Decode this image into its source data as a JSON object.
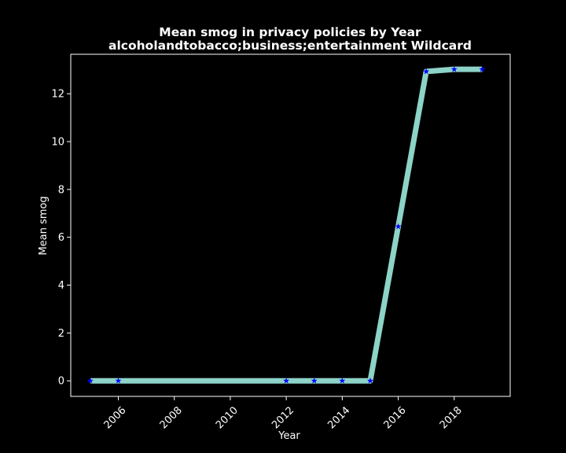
{
  "chart_data": {
    "type": "line",
    "title": "Mean smog in privacy policies by Year",
    "subtitle": "alcoholandtobacco;business;entertainment Wildcard",
    "xlabel": "Year",
    "ylabel": "Mean smog",
    "x": [
      2005,
      2006,
      2012,
      2013,
      2014,
      2015,
      2016,
      2017,
      2018,
      2019
    ],
    "series": [
      {
        "values": [
          0,
          0,
          0,
          0,
          0,
          0,
          6.45,
          12.93,
          13.02,
          13.02
        ]
      }
    ],
    "xlim": [
      2004.3,
      2020.0
    ],
    "ylim": [
      -0.65,
      13.65
    ],
    "xticks": [
      2006,
      2008,
      2010,
      2012,
      2014,
      2016,
      2018
    ],
    "xtick_labels": [
      "2006",
      "2008",
      "2010",
      "2012",
      "2014",
      "2016",
      "2018"
    ],
    "yticks": [
      0,
      2,
      4,
      6,
      8,
      10,
      12
    ],
    "ytick_labels": [
      "0",
      "2",
      "4",
      "6",
      "8",
      "10",
      "12"
    ],
    "grid": false,
    "line_color": "#8dd3c7",
    "marker_color": "#0000ff",
    "marker": "star",
    "background": "#000000",
    "axes_color": "#ffffff"
  }
}
